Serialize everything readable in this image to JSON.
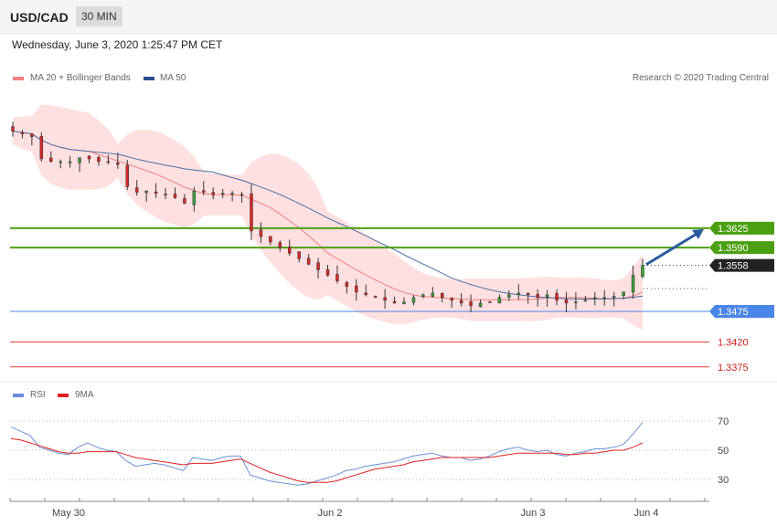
{
  "header": {
    "symbol": "USD/CAD",
    "timeframe": "30 MIN"
  },
  "datetime": "Wednesday, June 3, 2020 1:25:47 PM CET",
  "legend": {
    "ma20": "MA 20 + Bollinger Bands",
    "ma50": "MA 50",
    "credit": "Research © 2020 Trading Central",
    "rsi": "RSI",
    "ma9": "9MA"
  },
  "colors": {
    "up": "#3a9d3a",
    "down": "#d62828",
    "bollinger": "#ffe0e0",
    "ma20": "#f08080",
    "ma50": "#4a6fa8",
    "resistance": "#4aa010",
    "pivot": "#4a86e8",
    "support": "#e04040",
    "rsi": "#6a8fd8",
    "rsi_ma": "#e02020"
  },
  "chart_data": [
    {
      "type": "candlestick",
      "price_range": [
        1.3345,
        1.388
      ],
      "x_ticks": [
        "May 30",
        "Jun 2",
        "Jun 3",
        "Jun 4"
      ],
      "levels": [
        {
          "value": 1.3625,
          "label": "1.3625",
          "kind": "resistance"
        },
        {
          "value": 1.359,
          "label": "1.3590",
          "kind": "resistance"
        },
        {
          "value": 1.3558,
          "label": "1.3558",
          "kind": "last"
        },
        {
          "value": 1.3475,
          "label": "1.3475",
          "kind": "pivot"
        },
        {
          "value": 1.342,
          "label": "1.3420",
          "kind": "support"
        },
        {
          "value": 1.3375,
          "label": "1.3375",
          "kind": "support"
        }
      ],
      "forecast_target": 1.3625,
      "close_path": [
        1.38,
        1.3795,
        1.379,
        1.375,
        1.3745,
        1.3745,
        1.3745,
        1.3752,
        1.375,
        1.3745,
        1.3745,
        1.374,
        1.37,
        1.369,
        1.3692,
        1.3688,
        1.3685,
        1.368,
        1.367,
        1.3692,
        1.369,
        1.3685,
        1.3688,
        1.3688,
        1.3685,
        1.362,
        1.361,
        1.36,
        1.359,
        1.358,
        1.357,
        1.356,
        1.355,
        1.354,
        1.353,
        1.352,
        1.351,
        1.3505,
        1.35,
        1.3495,
        1.349,
        1.3492,
        1.35,
        1.3505,
        1.3508,
        1.35,
        1.3495,
        1.349,
        1.3485,
        1.349,
        1.3492,
        1.35,
        1.3505,
        1.3508,
        1.3505,
        1.35,
        1.3505,
        1.3495,
        1.349,
        1.3492,
        1.3495,
        1.35,
        1.35,
        1.3502,
        1.351,
        1.354,
        1.3558
      ],
      "rsi": {
        "levels": [
          70,
          50,
          30
        ],
        "rsi_values": [
          66,
          63,
          60,
          52,
          50,
          48,
          47,
          52,
          55,
          52,
          50,
          49,
          43,
          39,
          40,
          41,
          40,
          38,
          36,
          45,
          44,
          43,
          45,
          46,
          46,
          33,
          31,
          29,
          28,
          27,
          26,
          27,
          29,
          31,
          33,
          36,
          37,
          39,
          40,
          41,
          42,
          44,
          46,
          47,
          48,
          46,
          45,
          45,
          43,
          44,
          46,
          49,
          51,
          52,
          50,
          49,
          50,
          47,
          46,
          48,
          49,
          51,
          51,
          52,
          54,
          61,
          69
        ],
        "ma9_values": [
          58,
          57,
          55,
          53,
          51,
          49,
          48,
          48,
          49,
          49,
          49,
          49,
          47,
          45,
          44,
          43,
          42,
          41,
          40,
          41,
          41,
          41,
          42,
          43,
          44,
          41,
          38,
          35,
          33,
          31,
          29,
          28,
          28,
          28,
          29,
          31,
          33,
          35,
          37,
          38,
          39,
          40,
          42,
          43,
          44,
          45,
          45,
          45,
          45,
          45,
          45,
          46,
          47,
          48,
          48,
          48,
          48,
          48,
          47,
          47,
          48,
          48,
          49,
          50,
          50,
          52,
          55
        ]
      }
    }
  ]
}
